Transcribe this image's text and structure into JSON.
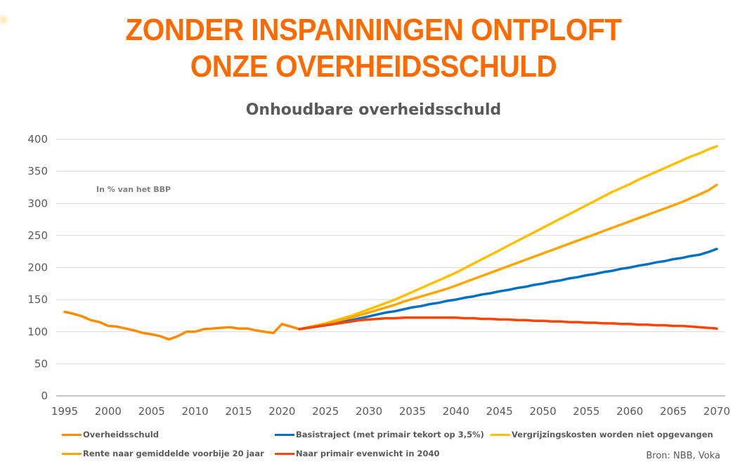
{
  "headline": {
    "line1": "ZONDER INSPANNINGEN ONTPLOFT",
    "line2": "ONZE OVERHEIDSSCHULD"
  },
  "source": "Bron: NBB, Voka",
  "chart_data": {
    "type": "line",
    "title": "Onhoudbare overheidsschuld",
    "annotation": "In % van het BBP",
    "xlabel": "",
    "ylabel": "",
    "xlim": [
      1995,
      2070
    ],
    "ylim": [
      0,
      400
    ],
    "x_ticks": [
      "1995",
      "2000",
      "2005",
      "2010",
      "2015",
      "2020",
      "2025",
      "2030",
      "2035",
      "2040",
      "2045",
      "2050",
      "2055",
      "2060",
      "2065",
      "2070"
    ],
    "y_ticks": [
      "0",
      "50",
      "100",
      "150",
      "200",
      "250",
      "300",
      "350",
      "400"
    ],
    "grid": true,
    "legend_position": "bottom",
    "series": [
      {
        "name": "Overheidsschuld",
        "color": "#ff8c00",
        "x_start": 1995,
        "values": [
          131,
          128,
          124,
          118,
          115,
          109,
          108,
          105,
          102,
          98,
          96,
          93,
          88,
          93,
          100,
          100,
          104,
          105,
          106,
          107,
          105,
          105,
          102,
          100,
          98,
          112,
          108,
          104
        ]
      },
      {
        "name": "Basistraject (met primair tekort op 3,5%)",
        "color": "#0070c0",
        "x_start": 2022,
        "values": [
          104,
          106,
          108,
          110,
          112,
          115,
          118,
          121,
          124,
          127,
          130,
          132,
          135,
          138,
          140,
          143,
          145,
          148,
          150,
          153,
          155,
          158,
          160,
          163,
          165,
          168,
          170,
          173,
          175,
          178,
          180,
          183,
          185,
          188,
          190,
          193,
          195,
          198,
          200,
          203,
          205,
          208,
          210,
          213,
          215,
          218,
          220,
          224,
          229
        ]
      },
      {
        "name": "Vergrijzingskosten worden niet opgevangen",
        "color": "#ffc000",
        "x_start": 2022,
        "values": [
          104,
          107,
          110,
          113,
          117,
          121,
          125,
          130,
          135,
          140,
          145,
          150,
          156,
          162,
          168,
          174,
          180,
          186,
          192,
          199,
          206,
          213,
          220,
          227,
          234,
          241,
          248,
          255,
          262,
          269,
          276,
          283,
          290,
          297,
          304,
          311,
          318,
          324,
          330,
          337,
          343,
          349,
          355,
          361,
          367,
          373,
          378,
          384,
          389
        ]
      },
      {
        "name": "Rente naar gemiddelde voorbije 20 jaar",
        "color": "#ffa500",
        "x_start": 2022,
        "values": [
          104,
          107,
          109,
          112,
          115,
          118,
          122,
          126,
          130,
          134,
          138,
          142,
          147,
          151,
          155,
          159,
          163,
          167,
          172,
          177,
          182,
          187,
          192,
          197,
          202,
          207,
          212,
          217,
          222,
          227,
          232,
          237,
          242,
          247,
          252,
          257,
          262,
          267,
          272,
          277,
          282,
          287,
          292,
          297,
          302,
          308,
          314,
          320,
          329
        ]
      },
      {
        "name": "Naar primair evenwicht in 2040",
        "color": "#ff4500",
        "x_start": 2022,
        "values": [
          104,
          106,
          108,
          110,
          112,
          114,
          116,
          118,
          119,
          120,
          121,
          121,
          122,
          122,
          122,
          122,
          122,
          122,
          122,
          121,
          121,
          120,
          120,
          119,
          119,
          118,
          118,
          117,
          117,
          116,
          116,
          115,
          115,
          114,
          114,
          113,
          113,
          112,
          112,
          111,
          111,
          110,
          110,
          109,
          109,
          108,
          107,
          106,
          105
        ]
      }
    ]
  },
  "legend": [
    {
      "label": "Overheidsschuld",
      "color": "#ff8c00"
    },
    {
      "label": "Basistraject (met primair tekort op 3,5%)",
      "color": "#0070c0"
    },
    {
      "label": "Vergrijzingskosten worden niet opgevangen",
      "color": "#ffc000"
    },
    {
      "label": "Rente naar gemiddelde voorbije 20 jaar",
      "color": "#ffa500"
    },
    {
      "label": "Naar primair evenwicht in 2040",
      "color": "#ff4500"
    }
  ]
}
